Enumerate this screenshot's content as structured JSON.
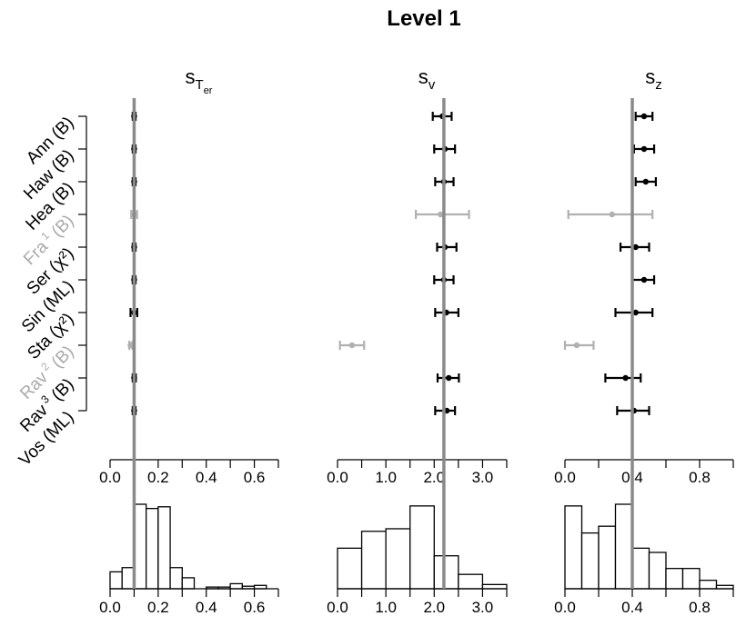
{
  "chart_data": {
    "type": "forest-and-histogram",
    "title": "Level 1",
    "studies": [
      {
        "label": "Ann (B)",
        "base": "Ann",
        "sup": "",
        "paren": "(B)",
        "excluded": false
      },
      {
        "label": "Haw (B)",
        "base": "Haw",
        "sup": "",
        "paren": "(B)",
        "excluded": false
      },
      {
        "label": "Hea (B)",
        "base": "Hea",
        "sup": "",
        "paren": "(B)",
        "excluded": false
      },
      {
        "label": "Fra 1 (B)",
        "base": "Fra",
        "sup": "1",
        "paren": "(B)",
        "excluded": true
      },
      {
        "label": "Ser (χ2)",
        "base": "Ser",
        "sup": "",
        "paren": "(χ²)",
        "excluded": false
      },
      {
        "label": "Sin (ML)",
        "base": "Sin",
        "sup": "",
        "paren": "(ML)",
        "excluded": false
      },
      {
        "label": "Sta (χ2)",
        "base": "Sta",
        "sup": "",
        "paren": "(χ²)",
        "excluded": false
      },
      {
        "label": "Rav 2 (B)",
        "base": "Rav",
        "sup": "2",
        "paren": "(B)",
        "excluded": true
      },
      {
        "label": "Rav 3 (B)",
        "base": "Rav",
        "sup": "3",
        "paren": "(B)",
        "excluded": false
      },
      {
        "label": "Vos (ML)",
        "base": "Vos",
        "sup": "",
        "paren": "(ML)",
        "excluded": false
      }
    ],
    "panels": [
      {
        "title_main": "s",
        "title_sub": "T",
        "title_subsub": "er",
        "xlim": [
          0,
          0.7
        ],
        "ticks": [
          0.0,
          0.2,
          0.4,
          0.6
        ],
        "tick_labels": [
          "0.0",
          "0.2",
          "0.4",
          "0.6"
        ],
        "reference": 0.1,
        "estimates": [
          {
            "mean": 0.1,
            "lo": 0.094,
            "hi": 0.106
          },
          {
            "mean": 0.1,
            "lo": 0.094,
            "hi": 0.106
          },
          {
            "mean": 0.1,
            "lo": 0.094,
            "hi": 0.106
          },
          {
            "mean": 0.1,
            "lo": 0.088,
            "hi": 0.112
          },
          {
            "mean": 0.1,
            "lo": 0.094,
            "hi": 0.106
          },
          {
            "mean": 0.1,
            "lo": 0.094,
            "hi": 0.106
          },
          {
            "mean": 0.1,
            "lo": 0.085,
            "hi": 0.113
          },
          {
            "mean": 0.085,
            "lo": 0.08,
            "hi": 0.093
          },
          {
            "mean": 0.1,
            "lo": 0.094,
            "hi": 0.107
          },
          {
            "mean": 0.1,
            "lo": 0.094,
            "hi": 0.106
          }
        ],
        "histogram": {
          "bin_width": 0.05,
          "start": 0.0,
          "heights": [
            0.2,
            0.25,
            1.0,
            0.95,
            0.97,
            0.25,
            0.13,
            0.0,
            0.02,
            0.02,
            0.06,
            0.03,
            0.04
          ]
        }
      },
      {
        "title_main": "s",
        "title_sub": "v",
        "title_subsub": "",
        "xlim": [
          0,
          3.5
        ],
        "ticks": [
          0.0,
          1.0,
          2.0,
          3.0
        ],
        "tick_labels": [
          "0.0",
          "1.0",
          "2.0",
          "3.0"
        ],
        "reference": 2.2,
        "estimates": [
          {
            "mean": 2.17,
            "lo": 1.97,
            "hi": 2.36
          },
          {
            "mean": 2.22,
            "lo": 2.0,
            "hi": 2.43
          },
          {
            "mean": 2.2,
            "lo": 2.02,
            "hi": 2.4
          },
          {
            "mean": 2.13,
            "lo": 1.62,
            "hi": 2.72
          },
          {
            "mean": 2.22,
            "lo": 2.06,
            "hi": 2.46
          },
          {
            "mean": 2.2,
            "lo": 2.0,
            "hi": 2.4
          },
          {
            "mean": 2.25,
            "lo": 2.02,
            "hi": 2.5
          },
          {
            "mean": 0.3,
            "lo": 0.05,
            "hi": 0.55
          },
          {
            "mean": 2.3,
            "lo": 2.07,
            "hi": 2.51
          },
          {
            "mean": 2.26,
            "lo": 2.02,
            "hi": 2.43
          }
        ],
        "histogram": {
          "bin_width": 0.5,
          "start": 0.0,
          "heights": [
            0.48,
            0.68,
            0.71,
            0.98,
            0.39,
            0.17,
            0.05
          ]
        }
      },
      {
        "title_main": "s",
        "title_sub": "z",
        "title_subsub": "",
        "xlim": [
          0,
          1.0
        ],
        "ticks": [
          0.0,
          0.4,
          0.8
        ],
        "tick_labels": [
          "0.0",
          "0.4",
          "0.8"
        ],
        "reference": 0.4,
        "estimates": [
          {
            "mean": 0.47,
            "lo": 0.42,
            "hi": 0.52
          },
          {
            "mean": 0.47,
            "lo": 0.41,
            "hi": 0.53
          },
          {
            "mean": 0.48,
            "lo": 0.42,
            "hi": 0.54
          },
          {
            "mean": 0.28,
            "lo": 0.02,
            "hi": 0.52
          },
          {
            "mean": 0.42,
            "lo": 0.33,
            "hi": 0.5
          },
          {
            "mean": 0.47,
            "lo": 0.4,
            "hi": 0.53
          },
          {
            "mean": 0.42,
            "lo": 0.3,
            "hi": 0.52
          },
          {
            "mean": 0.07,
            "lo": 0.0,
            "hi": 0.17
          },
          {
            "mean": 0.36,
            "lo": 0.24,
            "hi": 0.45
          },
          {
            "mean": 0.41,
            "lo": 0.31,
            "hi": 0.5
          }
        ],
        "histogram": {
          "bin_width": 0.1,
          "start": 0.0,
          "heights": [
            0.98,
            0.66,
            0.74,
            1.0,
            0.48,
            0.43,
            0.24,
            0.24,
            0.1,
            0.04
          ]
        }
      }
    ]
  }
}
